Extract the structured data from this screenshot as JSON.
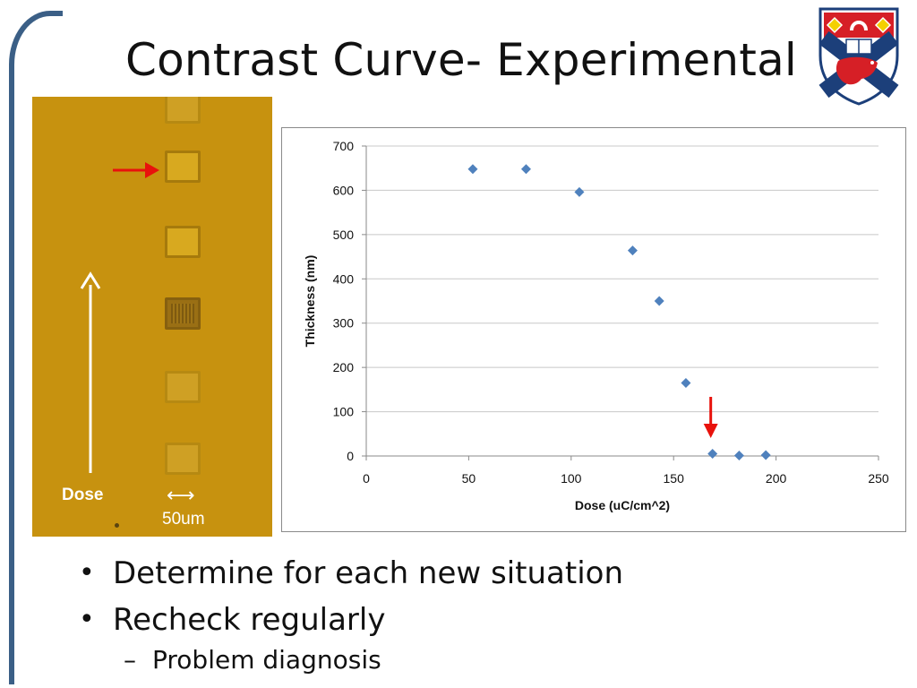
{
  "slide": {
    "title": "Contrast Curve- Experimental",
    "bullets": [
      "Determine for each new situation",
      "Recheck regularly"
    ],
    "bullet_marker": "•",
    "sub_bullets": [
      "Problem diagnosis"
    ],
    "sub_bullet_marker": "–",
    "accent_color": "#3b5f86"
  },
  "micrograph": {
    "dose_label": "Dose",
    "scale_label": "50um",
    "scale_arrow": "⟷",
    "background_color": "#c7920f"
  },
  "crest": {
    "icon": "university-crest-icon",
    "colors": [
      "#d61f26",
      "#1c3f7a",
      "#ffffff"
    ]
  },
  "chart_data": {
    "type": "scatter",
    "xlabel": "Dose (uC/cm^2)",
    "ylabel": "Thickness (nm)",
    "xlim": [
      0,
      250
    ],
    "ylim": [
      0,
      700
    ],
    "x_ticks": [
      0,
      50,
      100,
      150,
      200,
      250
    ],
    "y_ticks": [
      0,
      100,
      200,
      300,
      400,
      500,
      600,
      700
    ],
    "gridlines": "horizontal",
    "legend": "none",
    "marker": "diamond",
    "marker_color": "#4f81bd",
    "annotation": {
      "type": "red-arrow",
      "points_to_x": 169,
      "color": "#e8120c"
    },
    "series": [
      {
        "x": [
          52,
          78,
          104,
          130,
          143,
          156,
          169,
          182,
          195
        ],
        "y": [
          648,
          648,
          596,
          464,
          350,
          165,
          5,
          1,
          2
        ]
      }
    ]
  }
}
